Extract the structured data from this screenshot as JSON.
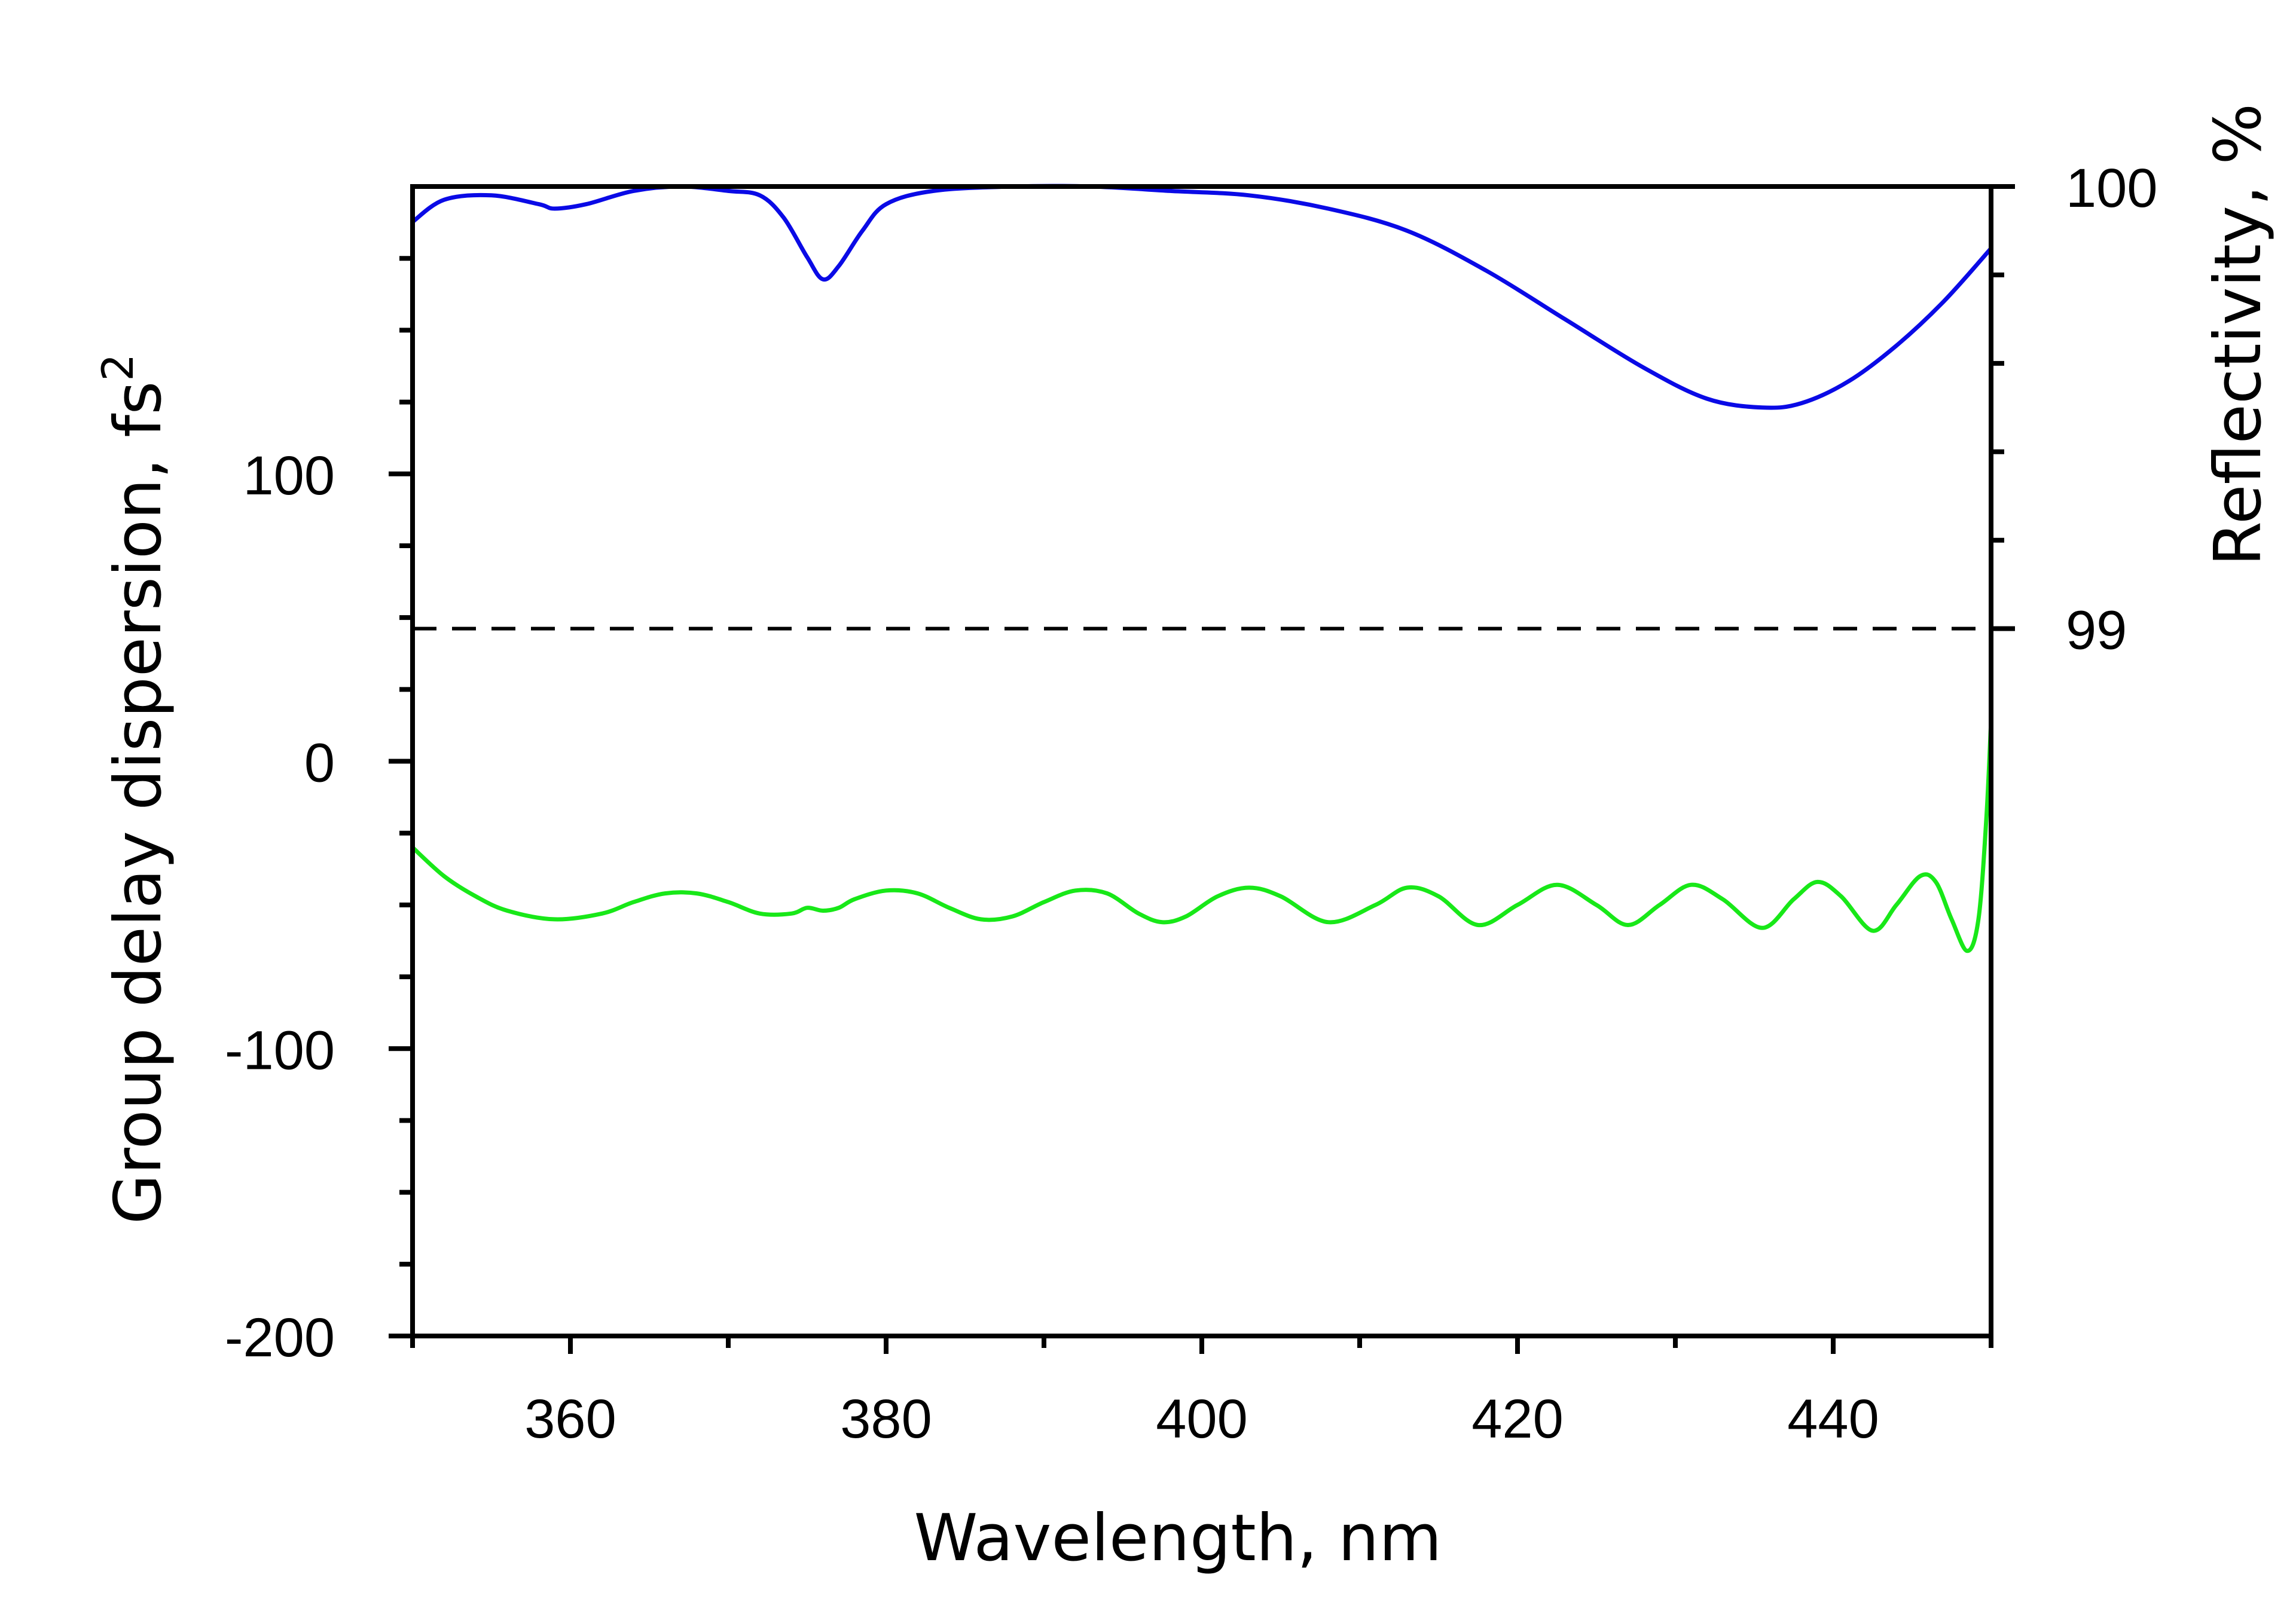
{
  "chart_data": {
    "type": "line",
    "xlabel": "Wavelength, nm",
    "ylabel_left": "Group delay dispersion, fs",
    "ylabel_left_sup": "2",
    "ylabel_right": "Reflectivity, %",
    "xlim": [
      350,
      450
    ],
    "ylim_left": [
      -200,
      200
    ],
    "ylim_right": [
      97.4,
      100
    ],
    "x_ticks": [
      360,
      380,
      400,
      420,
      440
    ],
    "y_left_ticks": [
      -200,
      -100,
      0,
      100
    ],
    "y_right_ticks": [
      99,
      100
    ],
    "threshold_line": {
      "axis": "right",
      "value": 99,
      "style": "dashed"
    },
    "series": [
      {
        "axis": "right",
        "color": "#0a0ae6",
        "points": [
          [
            350,
            99.92
          ],
          [
            352,
            99.97
          ],
          [
            355,
            99.98
          ],
          [
            358,
            99.96
          ],
          [
            359,
            99.95
          ],
          [
            361,
            99.96
          ],
          [
            364,
            99.99
          ],
          [
            367,
            100.0
          ],
          [
            370,
            99.99
          ],
          [
            372,
            99.98
          ],
          [
            373.5,
            99.93
          ],
          [
            375,
            99.84
          ],
          [
            376,
            99.79
          ],
          [
            377,
            99.82
          ],
          [
            378.5,
            99.9
          ],
          [
            380,
            99.96
          ],
          [
            383,
            99.99
          ],
          [
            388,
            100.0
          ],
          [
            393,
            100.0
          ],
          [
            398,
            99.99
          ],
          [
            403,
            99.98
          ],
          [
            408,
            99.95
          ],
          [
            413,
            99.9
          ],
          [
            418,
            99.81
          ],
          [
            423,
            99.7
          ],
          [
            428,
            99.59
          ],
          [
            432,
            99.52
          ],
          [
            435.5,
            99.5
          ],
          [
            438,
            99.51
          ],
          [
            441,
            99.56
          ],
          [
            444,
            99.64
          ],
          [
            447,
            99.74
          ],
          [
            450,
            99.86
          ]
        ]
      },
      {
        "axis": "left",
        "color": "#18e818",
        "points": [
          [
            350,
            -30
          ],
          [
            352,
            -40
          ],
          [
            354,
            -47
          ],
          [
            356,
            -52
          ],
          [
            359,
            -55
          ],
          [
            362,
            -53
          ],
          [
            364,
            -49
          ],
          [
            366,
            -46
          ],
          [
            368,
            -46
          ],
          [
            370,
            -49
          ],
          [
            372,
            -53
          ],
          [
            374,
            -53
          ],
          [
            375,
            -51
          ],
          [
            376,
            -52
          ],
          [
            377,
            -51
          ],
          [
            378,
            -48
          ],
          [
            380,
            -45
          ],
          [
            382,
            -46
          ],
          [
            384,
            -51
          ],
          [
            386,
            -55
          ],
          [
            388,
            -54
          ],
          [
            390,
            -49
          ],
          [
            392,
            -45
          ],
          [
            394,
            -46
          ],
          [
            396,
            -53
          ],
          [
            397.5,
            -56
          ],
          [
            399,
            -54
          ],
          [
            401,
            -47
          ],
          [
            403,
            -44
          ],
          [
            405,
            -47
          ],
          [
            408,
            -56
          ],
          [
            411,
            -50
          ],
          [
            413,
            -44
          ],
          [
            415,
            -47
          ],
          [
            417.5,
            -57
          ],
          [
            420,
            -50
          ],
          [
            422.5,
            -43
          ],
          [
            425,
            -50
          ],
          [
            427,
            -57
          ],
          [
            429,
            -50
          ],
          [
            431,
            -43
          ],
          [
            433,
            -48
          ],
          [
            435.5,
            -58
          ],
          [
            437.5,
            -48
          ],
          [
            439,
            -42
          ],
          [
            440.5,
            -47
          ],
          [
            442.5,
            -59
          ],
          [
            444,
            -50
          ],
          [
            445.5,
            -40
          ],
          [
            446.5,
            -42
          ],
          [
            447.5,
            -55
          ],
          [
            448.5,
            -66
          ],
          [
            449.2,
            -55
          ],
          [
            449.7,
            -20
          ],
          [
            450,
            14
          ]
        ]
      }
    ]
  }
}
